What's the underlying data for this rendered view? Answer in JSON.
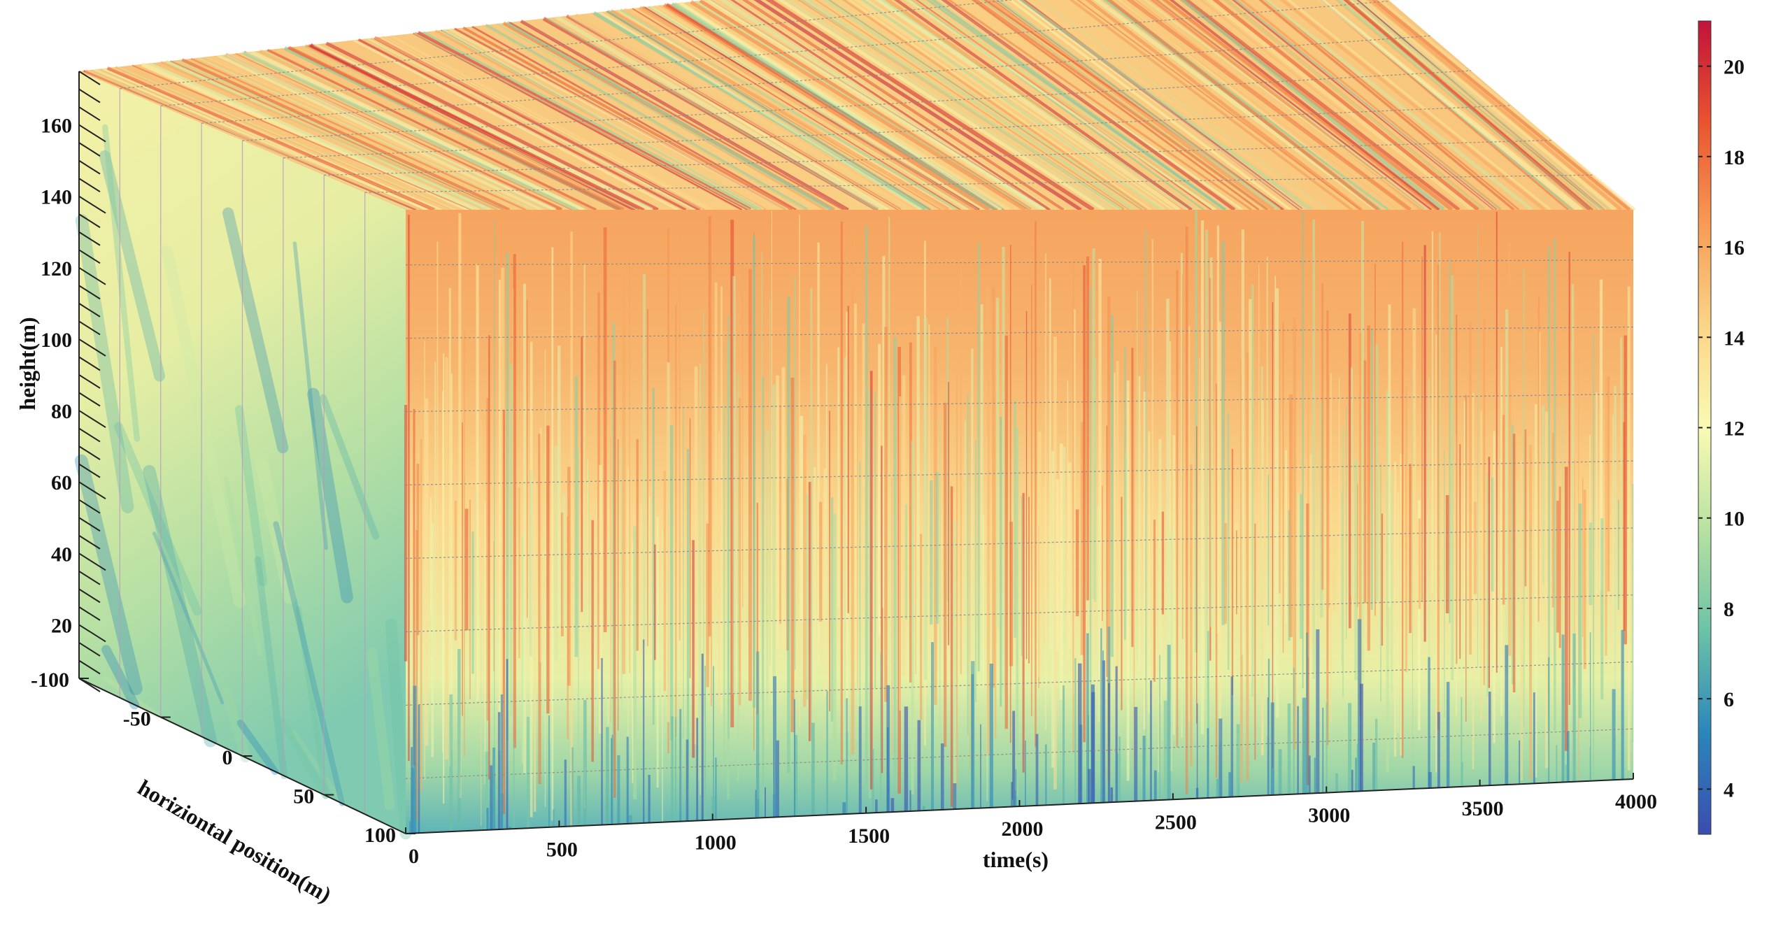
{
  "chart_data": {
    "type": "heatmap",
    "subtype": "3d-slices",
    "title": "",
    "axes": {
      "time": {
        "label": "time(s)",
        "range": [
          0,
          4000
        ],
        "ticks": [
          0,
          500,
          1000,
          1500,
          2000,
          2500,
          3000,
          3500,
          4000
        ]
      },
      "horizontal": {
        "label": "horiziontal position(m)",
        "range": [
          -100,
          100
        ],
        "ticks": [
          -100,
          -50,
          0,
          50,
          100
        ]
      },
      "height": {
        "label": "height(m)",
        "range": [
          5,
          175
        ],
        "ticks": [
          20,
          40,
          60,
          80,
          100,
          120,
          140,
          160
        ]
      }
    },
    "colorbar": {
      "range": [
        3,
        21
      ],
      "ticks": [
        4,
        6,
        8,
        10,
        12,
        14,
        16,
        18,
        20
      ],
      "colormap": [
        "#3b4cb0",
        "#2a86bb",
        "#6cc2a7",
        "#b7e2a1",
        "#fafab4",
        "#fbd587",
        "#f89b55",
        "#e9542f",
        "#c0133a"
      ]
    },
    "grid": true
  }
}
